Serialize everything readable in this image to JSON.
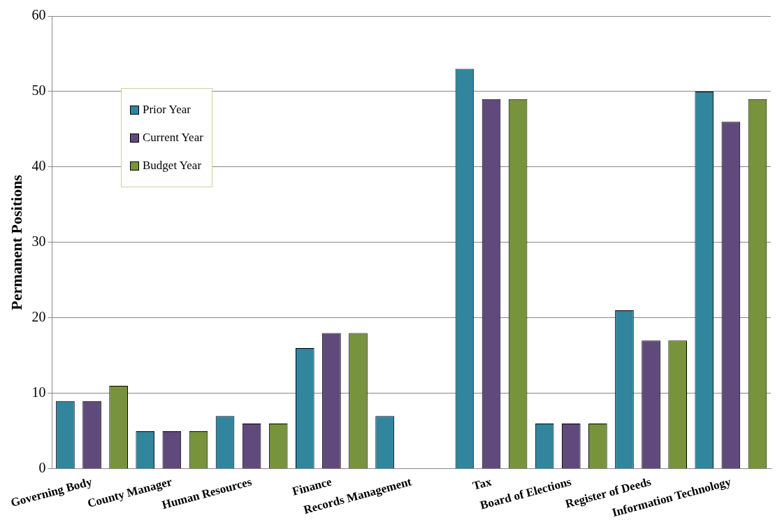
{
  "chart_data": {
    "type": "bar",
    "ylabel": "Permanent Positions",
    "categories": [
      "Governing Body",
      "County Manager",
      "Human Resources",
      "Finance",
      "Records Management",
      "Tax",
      "Board of Elections",
      "Register of Deeds",
      "Information Technology"
    ],
    "series": [
      {
        "name": "Prior Year",
        "color": "#31859c",
        "values": [
          9,
          5,
          7,
          16,
          7,
          53,
          6,
          21,
          50
        ]
      },
      {
        "name": "Current Year",
        "color": "#604a7b",
        "values": [
          9,
          5,
          6,
          18,
          null,
          49,
          6,
          17,
          46
        ]
      },
      {
        "name": "Budget Year",
        "color": "#77933c",
        "values": [
          11,
          5,
          6,
          18,
          null,
          49,
          6,
          17,
          49
        ]
      }
    ],
    "ylim": [
      0,
      60
    ],
    "yticks": [
      0,
      10,
      20,
      30,
      40,
      50,
      60
    ],
    "grid": "y",
    "legend": "top left"
  }
}
